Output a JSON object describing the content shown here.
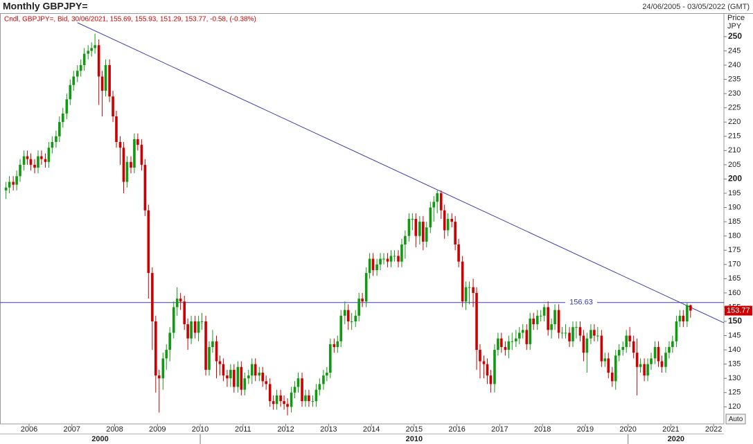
{
  "chart_data": {
    "type": "candlestick",
    "title": "Monthly GBPJPY=",
    "date_range": "24/06/2005 - 03/05/2022 (GMT)",
    "legend": "Cndl, GBPJPY=, Bid, 30/06/2021, 155.69, 155.93, 151.29, 153.77, -0.58, (-0.38%)",
    "y_axis_label": "Price",
    "y_axis_unit": "JPY",
    "button": "Auto",
    "up_color": "#119911",
    "down_color": "#cc0000",
    "xlim": [
      2005.32,
      2022.24
    ],
    "ylim": [
      114,
      258
    ],
    "xticks": [
      2006,
      2007,
      2008,
      2009,
      2010,
      2011,
      2012,
      2013,
      2014,
      2015,
      2016,
      2017,
      2018,
      2019,
      2020,
      2021,
      2022
    ],
    "decades": [
      2000,
      2010,
      2020
    ],
    "yticks": [
      120,
      125,
      130,
      135,
      140,
      145,
      150,
      155,
      160,
      165,
      170,
      175,
      180,
      185,
      190,
      195,
      200,
      205,
      210,
      215,
      220,
      225,
      230,
      235,
      240,
      245,
      250
    ],
    "hline": {
      "value": 156.63,
      "color": "#3b3bb0"
    },
    "trendline": {
      "x": [
        2007.13,
        2022.24
      ],
      "y": [
        254.9,
        149.5
      ],
      "color": "#3b3bb0"
    },
    "x": [
      2005.46,
      2005.54,
      2005.63,
      2005.71,
      2005.79,
      2005.88,
      2005.96,
      2006.04,
      2006.13,
      2006.21,
      2006.29,
      2006.38,
      2006.46,
      2006.54,
      2006.63,
      2006.71,
      2006.79,
      2006.88,
      2006.96,
      2007.04,
      2007.13,
      2007.21,
      2007.29,
      2007.38,
      2007.46,
      2007.54,
      2007.63,
      2007.71,
      2007.79,
      2007.88,
      2007.96,
      2008.04,
      2008.13,
      2008.21,
      2008.29,
      2008.38,
      2008.46,
      2008.54,
      2008.63,
      2008.71,
      2008.79,
      2008.88,
      2008.96,
      2009.04,
      2009.13,
      2009.21,
      2009.29,
      2009.38,
      2009.46,
      2009.54,
      2009.63,
      2009.71,
      2009.79,
      2009.88,
      2009.96,
      2010.04,
      2010.13,
      2010.21,
      2010.29,
      2010.38,
      2010.46,
      2010.54,
      2010.63,
      2010.71,
      2010.79,
      2010.88,
      2010.96,
      2011.04,
      2011.13,
      2011.21,
      2011.29,
      2011.38,
      2011.46,
      2011.54,
      2011.63,
      2011.71,
      2011.79,
      2011.88,
      2011.96,
      2012.04,
      2012.13,
      2012.21,
      2012.29,
      2012.38,
      2012.46,
      2012.54,
      2012.63,
      2012.71,
      2012.79,
      2012.88,
      2012.96,
      2013.04,
      2013.13,
      2013.21,
      2013.29,
      2013.38,
      2013.46,
      2013.54,
      2013.63,
      2013.71,
      2013.79,
      2013.88,
      2013.96,
      2014.04,
      2014.13,
      2014.21,
      2014.29,
      2014.38,
      2014.46,
      2014.54,
      2014.63,
      2014.71,
      2014.79,
      2014.88,
      2014.96,
      2015.04,
      2015.13,
      2015.21,
      2015.29,
      2015.38,
      2015.46,
      2015.54,
      2015.63,
      2015.71,
      2015.79,
      2015.88,
      2015.96,
      2016.04,
      2016.13,
      2016.21,
      2016.29,
      2016.38,
      2016.46,
      2016.54,
      2016.63,
      2016.71,
      2016.79,
      2016.88,
      2016.96,
      2017.04,
      2017.13,
      2017.21,
      2017.29,
      2017.38,
      2017.46,
      2017.54,
      2017.63,
      2017.71,
      2017.79,
      2017.88,
      2017.96,
      2018.04,
      2018.13,
      2018.21,
      2018.29,
      2018.38,
      2018.46,
      2018.54,
      2018.63,
      2018.71,
      2018.79,
      2018.88,
      2018.96,
      2019.04,
      2019.13,
      2019.21,
      2019.29,
      2019.38,
      2019.46,
      2019.54,
      2019.63,
      2019.71,
      2019.79,
      2019.88,
      2019.96,
      2020.04,
      2020.13,
      2020.21,
      2020.29,
      2020.38,
      2020.46,
      2020.54,
      2020.63,
      2020.71,
      2020.79,
      2020.88,
      2020.96,
      2021.04,
      2021.13,
      2021.21,
      2021.29,
      2021.38,
      2021.46
    ],
    "open": [
      196,
      197,
      199,
      198,
      201,
      205,
      208,
      207,
      205,
      204,
      208,
      207,
      206,
      211,
      213,
      215,
      220,
      223,
      228,
      233,
      236,
      238,
      240,
      244,
      245,
      246,
      247,
      236,
      231,
      240,
      229,
      222,
      213,
      211,
      199,
      206,
      204,
      214,
      212,
      205,
      189,
      167,
      150,
      131,
      130,
      137,
      140,
      146,
      155,
      158,
      157,
      149,
      144,
      150,
      146,
      150,
      150,
      133,
      141,
      143,
      136,
      135,
      131,
      130,
      133,
      127,
      134,
      126,
      130,
      131,
      135,
      131,
      132,
      129,
      128,
      122,
      121,
      124,
      122,
      121,
      120,
      125,
      127,
      130,
      122,
      124,
      122,
      122,
      126,
      128,
      131,
      132,
      142,
      141,
      143,
      152,
      154,
      150,
      150,
      152,
      158,
      157,
      167,
      172,
      168,
      170,
      172,
      172,
      171,
      173,
      173,
      171,
      177,
      180,
      186,
      186,
      180,
      185,
      178,
      183,
      190,
      192,
      195,
      189,
      182,
      186,
      185,
      177,
      171,
      157,
      162,
      162,
      160,
      140,
      136,
      135,
      131,
      128,
      140,
      144,
      141,
      140,
      143,
      143,
      144,
      146,
      147,
      142,
      151,
      149,
      152,
      152,
      155,
      147,
      149,
      154,
      146,
      146,
      146,
      143,
      148,
      148,
      145,
      139,
      144,
      147,
      145,
      145,
      136,
      137,
      132,
      129,
      138,
      140,
      141,
      145,
      143,
      139,
      134,
      135,
      131,
      135,
      137,
      141,
      136,
      134,
      139,
      141,
      143,
      150,
      152,
      150,
      155.69
    ],
    "high": [
      199,
      201,
      201,
      203,
      207,
      210,
      210,
      209,
      207,
      210,
      210,
      209,
      213,
      215,
      217,
      222,
      225,
      230,
      235,
      238,
      240,
      242,
      246,
      247,
      248,
      251,
      249,
      238,
      242,
      242,
      231,
      224,
      215,
      213,
      208,
      208,
      216,
      216,
      214,
      207,
      191,
      169,
      152,
      133,
      139,
      142,
      148,
      157,
      162,
      160,
      159,
      151,
      152,
      152,
      152,
      153,
      152,
      143,
      147,
      145,
      138,
      137,
      133,
      135,
      135,
      136,
      136,
      132,
      133,
      137,
      137,
      134,
      134,
      131,
      130,
      124,
      126,
      126,
      124,
      123,
      127,
      129,
      132,
      132,
      126,
      126,
      124,
      128,
      130,
      133,
      134,
      144,
      144,
      145,
      154,
      157,
      156,
      153,
      154,
      160,
      160,
      169,
      174,
      174,
      172,
      174,
      174,
      174,
      175,
      175,
      175,
      179,
      182,
      188,
      188,
      188,
      187,
      187,
      185,
      192,
      194,
      196,
      196,
      191,
      188,
      188,
      187,
      179,
      173,
      164,
      164,
      165,
      162,
      142,
      138,
      137,
      133,
      142,
      146,
      146,
      143,
      145,
      146,
      147,
      148,
      149,
      149,
      153,
      153,
      154,
      154,
      156,
      157,
      151,
      156,
      156,
      148,
      149,
      148,
      150,
      150,
      150,
      147,
      146,
      149,
      149,
      148,
      147,
      139,
      139,
      134,
      140,
      142,
      143,
      147,
      148,
      145,
      144,
      137,
      137,
      137,
      139,
      143,
      143,
      138,
      141,
      143,
      145,
      152,
      154,
      154,
      156.5,
      155.93
    ],
    "low": [
      193,
      195,
      196,
      196,
      199,
      203,
      205,
      203,
      202,
      202,
      205,
      204,
      204,
      209,
      211,
      213,
      218,
      221,
      226,
      231,
      234,
      236,
      238,
      242,
      243,
      244,
      226,
      222,
      229,
      227,
      220,
      211,
      205,
      195,
      197,
      202,
      202,
      210,
      203,
      187,
      158,
      140,
      125,
      118,
      126,
      133,
      136,
      144,
      152,
      154,
      147,
      140,
      142,
      144,
      143,
      147,
      131,
      131,
      139,
      130,
      131,
      129,
      127,
      127,
      125,
      125,
      124,
      124,
      128,
      128,
      129,
      129,
      127,
      126,
      120,
      119,
      119,
      120,
      119,
      117,
      118,
      123,
      125,
      120,
      120,
      120,
      120,
      120,
      124,
      126,
      129,
      130,
      139,
      139,
      141,
      149,
      147,
      147,
      148,
      150,
      155,
      155,
      165,
      166,
      166,
      168,
      170,
      169,
      169,
      171,
      169,
      169,
      172,
      178,
      182,
      176,
      177,
      175,
      176,
      181,
      185,
      188,
      186,
      179,
      180,
      183,
      175,
      169,
      155,
      154,
      156,
      155,
      133,
      130,
      130,
      128,
      125,
      125,
      138,
      139,
      138,
      137,
      140,
      141,
      142,
      144,
      140,
      140,
      147,
      147,
      150,
      150,
      145,
      144,
      147,
      144,
      144,
      144,
      141,
      141,
      144,
      143,
      136,
      132,
      142,
      143,
      143,
      134,
      134,
      130,
      127,
      126,
      136,
      138,
      139,
      141,
      137,
      124,
      132,
      129,
      129,
      133,
      135,
      134,
      132,
      132,
      137,
      139,
      141,
      148,
      148,
      148,
      151.29
    ],
    "close": [
      197,
      199,
      198,
      201,
      205,
      208,
      207,
      205,
      204,
      208,
      207,
      206,
      211,
      213,
      215,
      220,
      223,
      228,
      233,
      236,
      238,
      240,
      244,
      245,
      246,
      247,
      236,
      231,
      240,
      229,
      222,
      213,
      211,
      199,
      206,
      204,
      214,
      212,
      205,
      189,
      167,
      150,
      131,
      130,
      137,
      140,
      146,
      155,
      158,
      157,
      149,
      144,
      150,
      146,
      150,
      150,
      133,
      141,
      143,
      136,
      135,
      131,
      130,
      133,
      127,
      134,
      126,
      130,
      131,
      135,
      131,
      132,
      129,
      128,
      122,
      121,
      124,
      122,
      121,
      120,
      125,
      127,
      130,
      122,
      124,
      122,
      122,
      126,
      128,
      131,
      132,
      142,
      141,
      143,
      152,
      154,
      150,
      150,
      152,
      158,
      157,
      167,
      172,
      168,
      170,
      172,
      172,
      171,
      173,
      173,
      171,
      177,
      180,
      186,
      186,
      180,
      185,
      178,
      183,
      190,
      192,
      195,
      189,
      182,
      186,
      185,
      177,
      171,
      157,
      162,
      162,
      160,
      140,
      136,
      135,
      131,
      128,
      140,
      144,
      141,
      140,
      143,
      143,
      144,
      146,
      147,
      142,
      151,
      149,
      152,
      152,
      155,
      147,
      149,
      154,
      146,
      146,
      146,
      143,
      148,
      148,
      145,
      139,
      144,
      147,
      145,
      145,
      136,
      137,
      132,
      129,
      138,
      140,
      141,
      145,
      143,
      139,
      134,
      135,
      131,
      135,
      137,
      141,
      136,
      134,
      139,
      141,
      143,
      150,
      152,
      150,
      155.69,
      153.77
    ]
  }
}
